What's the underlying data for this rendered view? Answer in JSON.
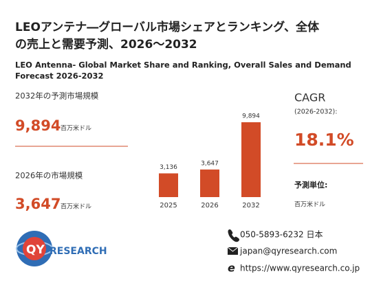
{
  "header": {
    "title_lines": [
      "LEOアンテナ―グローバル市場シェアとランキング、全体",
      "の売上と需要予測、2026～2032"
    ],
    "subtitle_lines": [
      "LEO Antenna- Global Market Share and Ranking, Overall Sales and Demand",
      "Forecast 2026-2032"
    ]
  },
  "stats": {
    "forecast_label": "2032年の予測市場規模",
    "forecast_value": "9,894",
    "forecast_unit": "百万米ドル",
    "current_label": "2026年の市場規模",
    "current_value": "3,647",
    "current_unit": "百万米ドル",
    "cagr_label": "CAGR",
    "cagr_period": "(2026-2032):",
    "cagr_value": "18.1%",
    "unit_label": "予測単位:",
    "unit_value": "百万米ドル"
  },
  "chart_data": {
    "type": "bar",
    "categories": [
      "2025",
      "2026",
      "2032"
    ],
    "values": [
      3136,
      3647,
      9894
    ],
    "value_labels": [
      "3,136",
      "3,647",
      "9,894"
    ],
    "color": "#d24b27"
  },
  "logo": {
    "mark": "QY",
    "text": "RESEARCH"
  },
  "contact": {
    "phone": "050-5893-6232 日本",
    "email": "japan@qyresearch.com",
    "web": "https://www.qyresearch.co.jp"
  }
}
